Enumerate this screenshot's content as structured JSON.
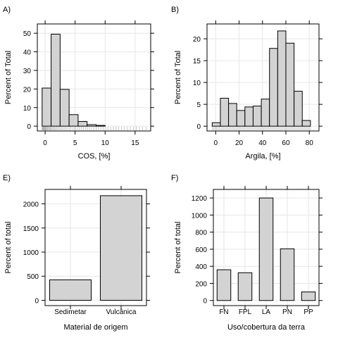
{
  "panels": [
    {
      "label": "A)"
    },
    {
      "label": "B)"
    },
    {
      "label": "E)"
    },
    {
      "label": "F)"
    }
  ],
  "colors": {
    "fill": "#d3d3d3",
    "stroke": "#000000",
    "grid": "#e6e6e6",
    "frame": "#000000",
    "rug": "#b0b0b0"
  },
  "chart_data": [
    {
      "type": "bar",
      "subtype": "histogram",
      "xlabel": "COS, [%]",
      "ylabel": "Percent of Total",
      "bin_edges": [
        -0.5,
        1.0,
        2.5,
        4.0,
        5.5,
        7.0,
        8.5,
        10.0
      ],
      "values": [
        20.5,
        49.5,
        19.8,
        6.2,
        2.5,
        0.8,
        0.4
      ],
      "xlim": [
        -1.3,
        17.6
      ],
      "ylim": [
        -2.6,
        55
      ],
      "xticks": [
        0,
        5,
        10,
        15
      ],
      "yticks": [
        0,
        10,
        20,
        30,
        40,
        50
      ],
      "rug": true,
      "grid": true
    },
    {
      "type": "bar",
      "subtype": "histogram",
      "xlabel": "Argila,  [%]",
      "ylabel": "Percent of Total",
      "bin_edges": [
        -3,
        4,
        11,
        18,
        25,
        32,
        39,
        46,
        53,
        60,
        67,
        74,
        81
      ],
      "values": [
        0.8,
        6.4,
        5.2,
        3.6,
        4.4,
        4.6,
        6.2,
        17.8,
        21.8,
        19.0,
        8.0,
        1.3
      ],
      "xlim": [
        -7.4,
        88.3
      ],
      "ylim": [
        -1.1,
        23.4
      ],
      "xticks": [
        0,
        20,
        40,
        60,
        80
      ],
      "yticks": [
        0,
        5,
        10,
        15,
        20
      ],
      "rug": true,
      "grid": true
    },
    {
      "type": "bar",
      "xlabel": "Material de origem",
      "ylabel": "Percent of total",
      "categories": [
        "Sedimetar",
        "Vulcânica"
      ],
      "values": [
        425,
        2170
      ],
      "ylim": [
        -110,
        2300
      ],
      "yticks": [
        0,
        500,
        1000,
        1500,
        2000
      ],
      "grid": true
    },
    {
      "type": "bar",
      "xlabel": "Uso/cobertura da terra",
      "ylabel": "Percent of total",
      "categories": [
        "FN",
        "FPL",
        "LA",
        "PN",
        "PP"
      ],
      "values": [
        360,
        325,
        1200,
        605,
        100
      ],
      "ylim": [
        -60,
        1300
      ],
      "yticks": [
        0,
        200,
        400,
        600,
        800,
        1000,
        1200
      ],
      "grid": true
    }
  ]
}
